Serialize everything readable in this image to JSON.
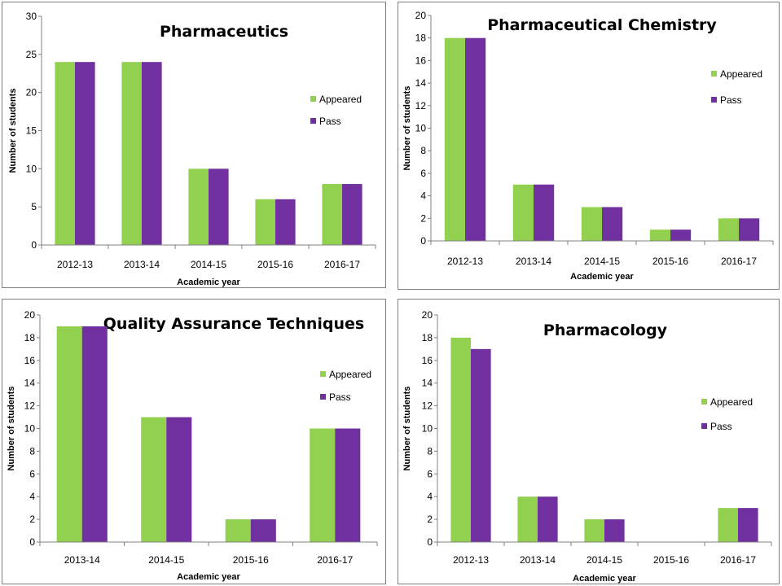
{
  "colors": {
    "appeared": "#92D050",
    "pass": "#7030A0"
  },
  "chart_data": [
    {
      "type": "bar",
      "title": "Pharmaceutics",
      "xlabel": "Academic year",
      "ylabel": "Number of students",
      "categories": [
        "2012-13",
        "2013-14",
        "2014-15",
        "2015-16",
        "2016-17"
      ],
      "series": [
        {
          "name": "Appeared",
          "values": [
            24,
            24,
            10,
            6,
            8
          ]
        },
        {
          "name": "Pass",
          "values": [
            24,
            24,
            10,
            6,
            8
          ]
        }
      ],
      "ylim": [
        0,
        30
      ],
      "ystep": 5,
      "legend": "right",
      "grid": false
    },
    {
      "type": "bar",
      "title": "Pharmaceutical Chemistry",
      "xlabel": "Academic year",
      "ylabel": "Number of students",
      "categories": [
        "2012-13",
        "2013-14",
        "2014-15",
        "2015-16",
        "2016-17"
      ],
      "series": [
        {
          "name": "Appeared",
          "values": [
            18,
            5,
            3,
            1,
            2
          ]
        },
        {
          "name": "Pass",
          "values": [
            18,
            5,
            3,
            1,
            2
          ]
        }
      ],
      "ylim": [
        0,
        20
      ],
      "ystep": 2,
      "legend": "right",
      "grid": false
    },
    {
      "type": "bar",
      "title": "Quality Assurance Techniques",
      "xlabel": "Academic year",
      "ylabel": "Number of students",
      "categories": [
        "2013-14",
        "2014-15",
        "2015-16",
        "2016-17"
      ],
      "series": [
        {
          "name": "Appeared",
          "values": [
            19,
            11,
            2,
            10
          ]
        },
        {
          "name": "Pass",
          "values": [
            19,
            11,
            2,
            10
          ]
        }
      ],
      "ylim": [
        0,
        20
      ],
      "ystep": 2,
      "legend": "right",
      "grid": false
    },
    {
      "type": "bar",
      "title": "Pharmacology",
      "xlabel": "Academic year",
      "ylabel": "Number of students",
      "categories": [
        "2012-13",
        "2013-14",
        "2014-15",
        "2015-16",
        "2016-17"
      ],
      "series": [
        {
          "name": "Appeared",
          "values": [
            18,
            4,
            2,
            0,
            3
          ]
        },
        {
          "name": "Pass",
          "values": [
            17,
            4,
            2,
            0,
            3
          ]
        }
      ],
      "ylim": [
        0,
        20
      ],
      "ystep": 2,
      "legend": "right",
      "grid": false
    }
  ]
}
